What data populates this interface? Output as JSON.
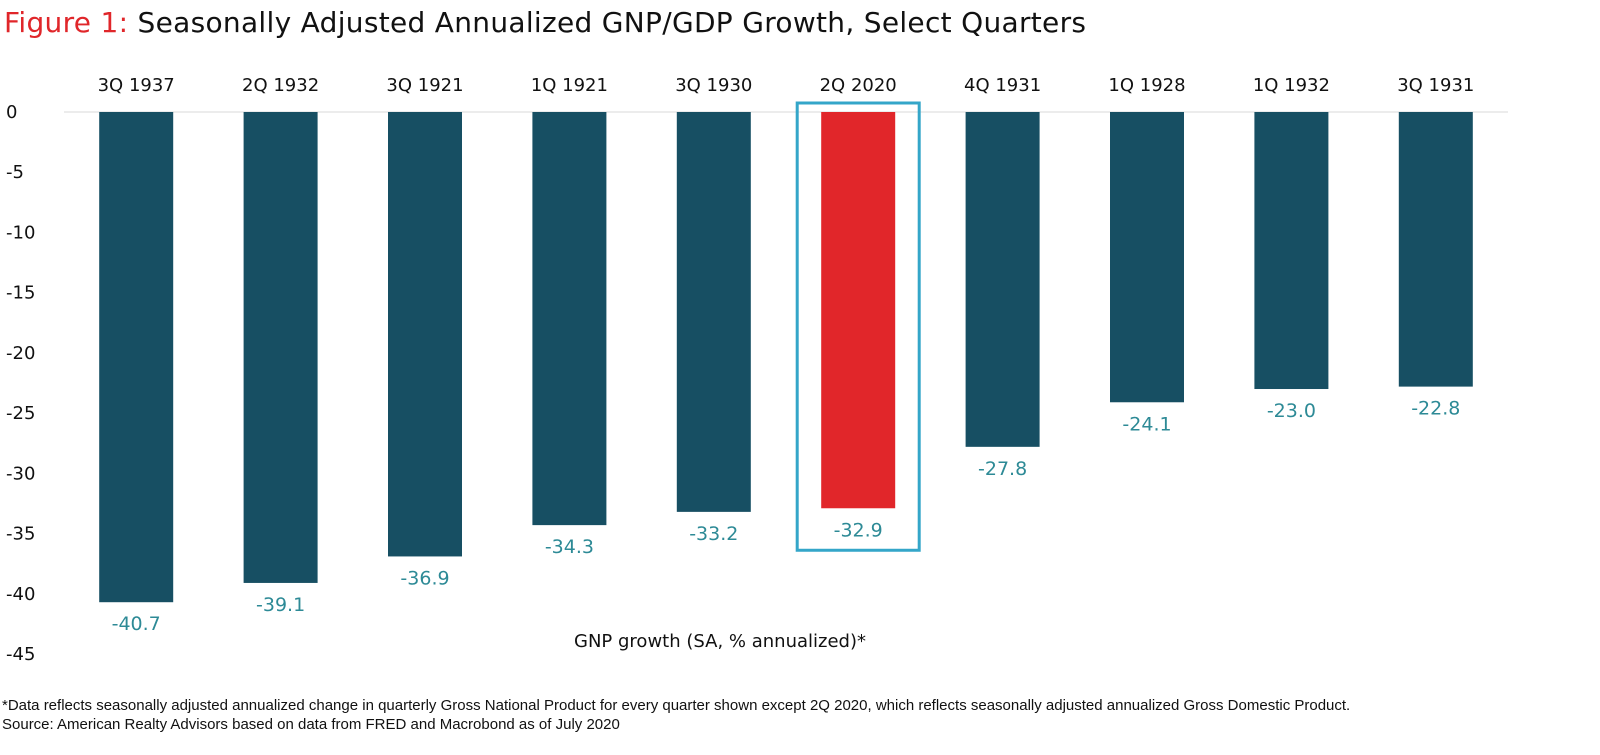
{
  "header": {
    "figure_label": "Figure 1:",
    "title": "Seasonally Adjusted Annualized GNP/GDP Growth, Select Quarters"
  },
  "colors": {
    "bar": "#174f63",
    "highlight_bar": "#e1262a",
    "label": "#2d8a96",
    "highlight_box": "#34a6c9",
    "gridline": "#d9d9d9",
    "title_accent": "#e0262a"
  },
  "chart_data": {
    "type": "bar",
    "title": "Seasonally Adjusted Annualized GNP/GDP Growth, Select Quarters",
    "xlabel": "GNP growth (SA, % annualized)*",
    "ylabel": "",
    "categories": [
      "3Q 1937",
      "2Q 1932",
      "3Q 1921",
      "1Q 1921",
      "3Q 1930",
      "2Q 2020",
      "4Q 1931",
      "1Q 1928",
      "1Q 1932",
      "3Q 1931"
    ],
    "values": [
      -40.7,
      -39.1,
      -36.9,
      -34.3,
      -33.2,
      -32.9,
      -27.8,
      -24.1,
      -23.0,
      -22.8
    ],
    "data_labels": [
      "-40.7",
      "-39.1",
      "-36.9",
      "-34.3",
      "-33.2",
      "-32.9",
      "-27.8",
      "-24.1",
      "-23.0",
      "-22.8"
    ],
    "highlight_category": "2Q 2020",
    "ylim": [
      -45,
      0
    ],
    "yticks": [
      0,
      -5,
      -10,
      -15,
      -20,
      -25,
      -30,
      -35,
      -40,
      -45
    ],
    "category_axis_position": "top",
    "grid": false,
    "legend": "none"
  },
  "footnote": {
    "note": "*Data reflects seasonally adjusted annualized change in quarterly Gross National Product for every quarter shown except 2Q 2020, which reflects seasonally adjusted annualized Gross Domestic Product.",
    "source": "Source: American Realty Advisors based on data from FRED and Macrobond as of July 2020"
  }
}
